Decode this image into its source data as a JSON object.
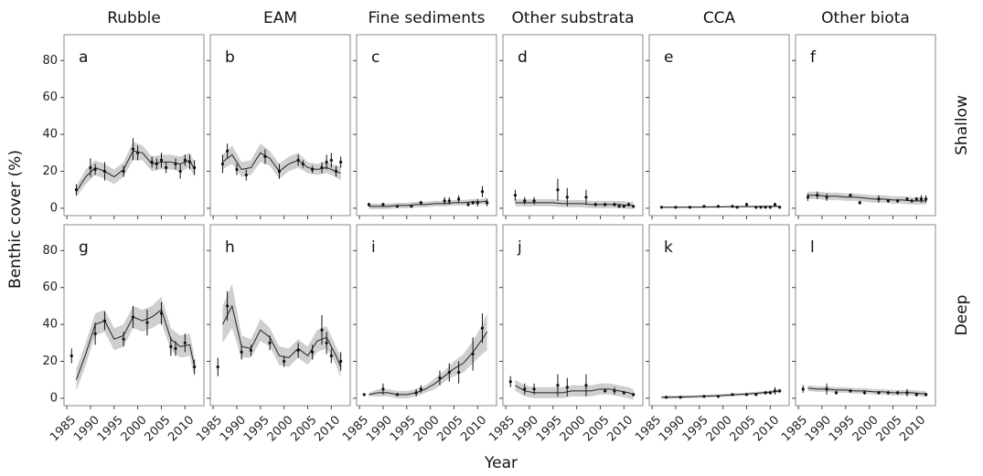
{
  "chart_data": {
    "type": "facet",
    "y_label": "Benthic cover (%)",
    "x_label": "Year",
    "xlim": [
      1984.4,
      2014
    ],
    "xticks": [
      1985,
      1990,
      1995,
      2000,
      2005,
      2010
    ],
    "ylim": [
      -4,
      94
    ],
    "yticks": [
      0,
      20,
      40,
      60,
      80
    ],
    "columns": [
      "Rubble",
      "EAM",
      "Fine sediments",
      "Other substrata",
      "CCA",
      "Other biota"
    ],
    "fit_x": [
      1987,
      1989,
      1991,
      1993,
      1995,
      1997,
      1999,
      2001,
      2003,
      2005,
      2007,
      2009,
      2011,
      2012
    ],
    "rows": [
      {
        "name": "Shallow",
        "panels": [
          {
            "label": "a",
            "x": [
              1987,
              1990,
              1991,
              1993,
              1997,
              1999,
              2000,
              2003,
              2004,
              2005,
              2006,
              2008,
              2009,
              2010,
              2011,
              2012
            ],
            "values": [
              10,
              22,
              21,
              20,
              20,
              32,
              30,
              25,
              24,
              26,
              22,
              24,
              20,
              26,
              25,
              22
            ],
            "errors": [
              3,
              5,
              3,
              5,
              3,
              6,
              4,
              3,
              3,
              4,
              3,
              3,
              4,
              3,
              4,
              4
            ],
            "fit": [
              9,
              17,
              22,
              20,
              17,
              21,
              31,
              30,
              24,
              25,
              25,
              24,
              26,
              21
            ],
            "fit_err": [
              3,
              4,
              4,
              4,
              4,
              4,
              5,
              4,
              4,
              4,
              4,
              4,
              4,
              4
            ]
          },
          {
            "label": "b",
            "x": [
              1987,
              1988,
              1990,
              1992,
              1996,
              1999,
              2003,
              2004,
              2006,
              2008,
              2009,
              2010,
              2011,
              2012
            ],
            "values": [
              24,
              31,
              21,
              18,
              28,
              20,
              26,
              24,
              21,
              22,
              25,
              26,
              20,
              25
            ],
            "errors": [
              5,
              4,
              3,
              3,
              4,
              4,
              3,
              2,
              2,
              3,
              4,
              4,
              3,
              3
            ],
            "fit": [
              25,
              29,
              21,
              22,
              30,
              27,
              20,
              24,
              26,
              22,
              21,
              22,
              20,
              19
            ],
            "fit_err": [
              4,
              5,
              4,
              4,
              5,
              4,
              4,
              4,
              4,
              3,
              3,
              3,
              3,
              4
            ]
          },
          {
            "label": "c",
            "x": [
              1987,
              1990,
              1993,
              1996,
              1998,
              2003,
              2004,
              2006,
              2008,
              2009,
              2010,
              2011,
              2012
            ],
            "values": [
              2,
              2,
              1,
              1,
              3,
              4,
              4,
              5,
              2,
              3,
              3,
              9,
              3
            ],
            "errors": [
              1,
              1,
              0.5,
              0.5,
              1,
              2,
              2,
              2,
              1,
              1,
              2,
              3,
              2
            ],
            "fit": [
              1,
              1,
              1,
              1.5,
              1.5,
              2,
              2,
              2.5,
              2.5,
              3,
              3,
              3.5,
              3.5,
              4
            ],
            "fit_err": [
              1.5,
              1.5,
              1.5,
              1.5,
              1.5,
              1.5,
              1.5,
              1.5,
              1.5,
              1.5,
              1.5,
              1.5,
              1.5,
              2
            ]
          },
          {
            "label": "d",
            "x": [
              1987,
              1989,
              1991,
              1996,
              1998,
              2002,
              2004,
              2006,
              2008,
              2009,
              2010,
              2011,
              2012
            ],
            "values": [
              7,
              4,
              4,
              10,
              6,
              6,
              2,
              2,
              2,
              1,
              1,
              2,
              1
            ],
            "errors": [
              3,
              2,
              2,
              6,
              5,
              4,
              1,
              1,
              1,
              0.5,
              0.5,
              1,
              0.5
            ],
            "fit": [
              3,
              3,
              3,
              3,
              3,
              2.5,
              2.5,
              2.5,
              2,
              2,
              2,
              2,
              1.5,
              1.5
            ],
            "fit_err": [
              2,
              2,
              2,
              2,
              2,
              2,
              2,
              2,
              2,
              2,
              2,
              2,
              2,
              2
            ]
          },
          {
            "label": "e",
            "x": [
              1987,
              1990,
              1993,
              1996,
              1999,
              2002,
              2003,
              2005,
              2007,
              2008,
              2009,
              2010,
              2011,
              2012
            ],
            "values": [
              0.5,
              0.5,
              0.5,
              1,
              1,
              1,
              0.5,
              2,
              0.5,
              0.5,
              0.5,
              0.5,
              2,
              0.5
            ],
            "errors": [
              0.3,
              0.3,
              0.3,
              0.5,
              0.5,
              0.5,
              0.3,
              1,
              0.3,
              0.3,
              0.3,
              0.3,
              1,
              0.3
            ],
            "fit": [
              0.5,
              0.5,
              0.5,
              0.6,
              0.6,
              0.7,
              0.7,
              0.8,
              0.8,
              0.9,
              0.9,
              1,
              1,
              1
            ],
            "fit_err": [
              0.5,
              0.5,
              0.5,
              0.5,
              0.5,
              0.5,
              0.5,
              0.5,
              0.5,
              0.5,
              0.5,
              0.5,
              0.5,
              0.5
            ]
          },
          {
            "label": "f",
            "x": [
              1987,
              1989,
              1991,
              1996,
              1998,
              2002,
              2004,
              2006,
              2008,
              2009,
              2010,
              2011,
              2012
            ],
            "values": [
              6,
              7,
              6,
              7,
              3,
              5,
              4,
              4,
              5,
              4,
              5,
              5,
              5
            ],
            "errors": [
              2,
              2,
              2,
              1,
              1,
              2,
              1,
              1,
              1,
              1,
              1,
              2,
              2
            ],
            "fit": [
              7,
              7,
              6.5,
              6.5,
              6,
              6,
              5.5,
              5,
              5,
              4.5,
              4.5,
              4,
              4,
              4
            ],
            "fit_err": [
              2,
              2,
              2,
              2,
              2,
              2,
              2,
              2,
              2,
              2,
              2,
              2,
              2,
              2
            ]
          }
        ]
      },
      {
        "name": "Deep",
        "panels": [
          {
            "label": "g",
            "x": [
              1986,
              1991,
              1993,
              1997,
              1999,
              2002,
              2005,
              2007,
              2008,
              2010,
              2012
            ],
            "values": [
              23,
              35,
              42,
              32,
              44,
              41,
              46,
              28,
              27,
              30,
              17
            ],
            "errors": [
              4,
              6,
              5,
              4,
              6,
              7,
              6,
              5,
              4,
              5,
              4
            ],
            "fit": [
              10,
              24,
              40,
              42,
              32,
              34,
              44,
              42,
              44,
              48,
              32,
              28,
              29,
              17
            ],
            "fit_err": [
              6,
              6,
              6,
              6,
              6,
              6,
              6,
              6,
              6,
              7,
              6,
              6,
              6,
              6
            ]
          },
          {
            "label": "h",
            "x": [
              1986,
              1988,
              1991,
              1993,
              1997,
              2000,
              2003,
              2006,
              2008,
              2009,
              2010,
              2012
            ],
            "values": [
              17,
              50,
              25,
              26,
              30,
              20,
              26,
              25,
              37,
              30,
              23,
              20
            ],
            "errors": [
              5,
              8,
              4,
              3,
              4,
              3,
              4,
              4,
              8,
              6,
              4,
              5
            ],
            "fit": [
              40,
              50,
              28,
              27,
              37,
              33,
              23,
              22,
              27,
              23,
              31,
              33,
              23,
              17
            ],
            "fit_err": [
              10,
              12,
              6,
              5,
              6,
              5,
              5,
              5,
              5,
              5,
              6,
              6,
              5,
              6
            ]
          },
          {
            "label": "i",
            "x": [
              1986,
              1990,
              1993,
              1997,
              1998,
              2002,
              2004,
              2006,
              2009,
              2011
            ],
            "values": [
              2,
              5,
              2,
              3,
              5,
              11,
              14,
              14,
              24,
              38
            ],
            "errors": [
              0.5,
              3,
              0.5,
              2,
              2,
              4,
              5,
              6,
              9,
              8
            ],
            "fit": [
              2,
              3,
              3,
              2,
              2,
              3,
              5,
              8,
              12,
              16,
              19,
              25,
              32,
              36
            ],
            "fit_err": [
              1,
              2,
              2,
              2,
              2,
              2,
              2,
              3,
              3,
              4,
              5,
              6,
              8,
              10
            ]
          },
          {
            "label": "j",
            "x": [
              1986,
              1989,
              1991,
              1996,
              1998,
              2002,
              2006,
              2008,
              2010,
              2012
            ],
            "values": [
              9,
              5,
              5,
              7,
              6,
              7,
              4,
              4,
              3,
              2
            ],
            "errors": [
              3,
              3,
              3,
              6,
              5,
              6,
              1,
              2,
              1,
              1
            ],
            "fit": [
              7,
              4,
              3,
              3,
              3,
              3,
              4,
              4,
              4,
              5,
              5,
              4,
              3,
              2
            ],
            "fit_err": [
              3,
              3,
              3,
              3,
              3,
              3,
              3,
              3,
              3,
              3,
              3,
              3,
              3,
              3
            ]
          },
          {
            "label": "k",
            "x": [
              1988,
              1991,
              1996,
              1999,
              2002,
              2005,
              2007,
              2009,
              2010,
              2011,
              2012
            ],
            "values": [
              0.5,
              0.5,
              1,
              1,
              2,
              2,
              2,
              3,
              3,
              4,
              4
            ],
            "errors": [
              0.3,
              0.3,
              0.3,
              0.3,
              0.5,
              0.5,
              0.5,
              1,
              1,
              2,
              1
            ],
            "fit": [
              0.5,
              0.6,
              0.7,
              0.8,
              1,
              1.2,
              1.4,
              1.7,
              2,
              2.3,
              2.7,
              3.1,
              3.6,
              4
            ],
            "fit_err": [
              0.8,
              0.8,
              0.8,
              0.8,
              0.8,
              0.8,
              0.8,
              0.8,
              0.8,
              0.8,
              0.8,
              0.8,
              1,
              1
            ]
          },
          {
            "label": "l",
            "x": [
              1986,
              1991,
              1993,
              1996,
              1999,
              2002,
              2004,
              2006,
              2008,
              2010,
              2012
            ],
            "values": [
              5,
              5,
              3,
              4,
              3,
              3,
              3,
              3,
              3,
              2,
              2
            ],
            "errors": [
              2,
              3,
              1,
              1,
              1,
              1,
              1,
              1,
              2,
              1,
              1
            ],
            "fit": [
              5.5,
              5,
              5,
              4.5,
              4.5,
              4,
              4,
              3.5,
              3.5,
              3,
              3,
              3,
              2.5,
              2.5
            ],
            "fit_err": [
              1.5,
              1.5,
              1.5,
              1.5,
              1.5,
              1.5,
              1.5,
              1.5,
              1.5,
              1.5,
              1.5,
              1.5,
              1.5,
              1.5
            ]
          }
        ]
      }
    ]
  }
}
